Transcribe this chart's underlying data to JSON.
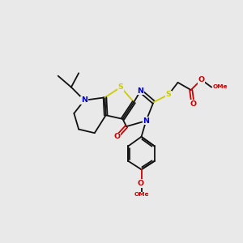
{
  "bg_color": "#e9e9e9",
  "atom_colors": {
    "S": "#cccc00",
    "N": "#0000cc",
    "O": "#cc0000",
    "C": "#111111"
  },
  "bond_color": "#111111",
  "lw": 1.3
}
